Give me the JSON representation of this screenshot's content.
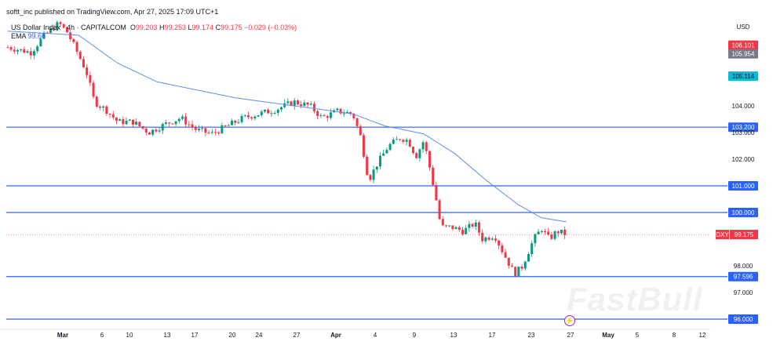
{
  "header": {
    "published": "softt_inc published on TradingView.com, Apr 27, 2025 17:09 UTC+1",
    "symbol": "US Dollar Index · 4h · CAPITALCOM",
    "open_label": "O",
    "open": "99.203",
    "high_label": "H",
    "high": "99.253",
    "low_label": "L",
    "low": "99.174",
    "close_label": "C",
    "close": "99.175",
    "change": "−0.029 (−0.03%)",
    "ema_label": "EMA",
    "ema_value": "99.66"
  },
  "watermark": "FastBull",
  "colors": {
    "up": "#089981",
    "down": "#f23645",
    "ema": "#5b8def",
    "level": "#2962ff",
    "last": "#f23645",
    "high_badge": "#f23645",
    "prev_badge": "#787b86",
    "ema_badge": "#00bcd4"
  },
  "chart_data": {
    "type": "candlestick",
    "currency_label": "USD",
    "symbol_badge": "DXY",
    "last_price": 99.175,
    "ylim": [
      95.4,
      108.0
    ],
    "y_ticks": [
      "104.000",
      "103.000",
      "102.000",
      "98.000",
      "97.000"
    ],
    "y_tick_values": [
      104,
      103,
      102,
      98,
      97
    ],
    "x_ticks": [
      {
        "label": "Mar",
        "date": "2025-03-03"
      },
      {
        "label": "6",
        "date": "2025-03-06"
      },
      {
        "label": "10",
        "date": "2025-03-10"
      },
      {
        "label": "13",
        "date": "2025-03-13"
      },
      {
        "label": "17",
        "date": "2025-03-17"
      },
      {
        "label": "20",
        "date": "2025-03-20"
      },
      {
        "label": "24",
        "date": "2025-03-24"
      },
      {
        "label": "27",
        "date": "2025-03-27"
      },
      {
        "label": "Apr",
        "date": "2025-04-01"
      },
      {
        "label": "4",
        "date": "2025-04-04"
      },
      {
        "label": "9",
        "date": "2025-04-09"
      },
      {
        "label": "13",
        "date": "2025-04-13"
      },
      {
        "label": "17",
        "date": "2025-04-17"
      },
      {
        "label": "23",
        "date": "2025-04-23"
      },
      {
        "label": "27",
        "date": "2025-04-27"
      },
      {
        "label": "May",
        "date": "2025-05-01"
      },
      {
        "label": "5",
        "date": "2025-05-05"
      },
      {
        "label": "8",
        "date": "2025-05-08"
      },
      {
        "label": "12",
        "date": "2025-05-12"
      }
    ],
    "price_path": [
      [
        "2025-02-26T19:00",
        106.2
      ],
      [
        "2025-02-28T14:00",
        106.0
      ],
      [
        "2025-03-01T12:00",
        106.6
      ],
      [
        "2025-03-02T17:00",
        107.1
      ],
      [
        "2025-03-03T07:00",
        106.8
      ],
      [
        "2025-03-03T22:00",
        106.2
      ],
      [
        "2025-03-04T19:00",
        105.3
      ],
      [
        "2025-03-05T10:00",
        104.15
      ],
      [
        "2025-03-06T14:00",
        103.85
      ],
      [
        "2025-03-08T07:00",
        103.4
      ],
      [
        "2025-03-10T07:00",
        103.4
      ],
      [
        "2025-03-11T13:00",
        103.0
      ],
      [
        "2025-03-12T19:00",
        103.3
      ],
      [
        "2025-03-14T23:00",
        103.55
      ],
      [
        "2025-03-17T03:00",
        103.1
      ],
      [
        "2025-03-18T09:00",
        102.95
      ],
      [
        "2025-03-19T15:00",
        103.25
      ],
      [
        "2025-03-21T16:00",
        103.55
      ],
      [
        "2025-03-24T00:00",
        103.7
      ],
      [
        "2025-03-25T06:00",
        103.85
      ],
      [
        "2025-03-26T19:00",
        104.15
      ],
      [
        "2025-03-28T17:00",
        104.0
      ],
      [
        "2025-03-30T05:00",
        103.55
      ],
      [
        "2025-04-01T03:00",
        103.8
      ],
      [
        "2025-04-02T07:00",
        103.7
      ],
      [
        "2025-04-02T22:00",
        102.8
      ],
      [
        "2025-04-03T12:00",
        101.2
      ],
      [
        "2025-04-04T05:00",
        101.8
      ],
      [
        "2025-04-05T17:00",
        102.5
      ],
      [
        "2025-04-07T05:00",
        102.8
      ],
      [
        "2025-04-08T05:00",
        102.7
      ],
      [
        "2025-04-09T04:00",
        102.1
      ],
      [
        "2025-04-09T23:00",
        102.7
      ],
      [
        "2025-04-10T14:00",
        101.65
      ],
      [
        "2025-04-11T04:00",
        100.6
      ],
      [
        "2025-04-11T17:00",
        99.45
      ],
      [
        "2025-04-12T19:00",
        99.45
      ],
      [
        "2025-04-14T00:00",
        99.3
      ],
      [
        "2025-04-15T05:00",
        99.6
      ],
      [
        "2025-04-16T00:00",
        99.0
      ],
      [
        "2025-04-17T09:00",
        99.15
      ],
      [
        "2025-04-19T05:00",
        98.25
      ],
      [
        "2025-04-20T10:00",
        97.7
      ],
      [
        "2025-04-21T13:00",
        97.95
      ],
      [
        "2025-04-23T06:00",
        99.0
      ],
      [
        "2025-04-24T01:00",
        99.4
      ],
      [
        "2025-04-24T20:00",
        99.0
      ],
      [
        "2025-04-25T15:00",
        99.3
      ],
      [
        "2025-04-26T14:00",
        99.175
      ]
    ],
    "ema_path": [
      [
        "2025-02-26T19:00",
        106.8
      ],
      [
        "2025-03-04T05:00",
        106.65
      ],
      [
        "2025-03-08T07:00",
        105.6
      ],
      [
        "2025-03-12T05:00",
        104.9
      ],
      [
        "2025-03-20T11:00",
        104.3
      ],
      [
        "2025-03-29T05:00",
        103.9
      ],
      [
        "2025-04-02T07:00",
        103.7
      ],
      [
        "2025-04-05T05:00",
        103.25
      ],
      [
        "2025-04-09T23:00",
        102.95
      ],
      [
        "2025-04-13T04:00",
        102.2
      ],
      [
        "2025-04-16T10:00",
        101.2
      ],
      [
        "2025-04-20T23:00",
        100.3
      ],
      [
        "2025-04-24T01:00",
        99.8
      ],
      [
        "2025-04-26T14:00",
        99.65
      ]
    ],
    "levels": [
      "103.200",
      "101.000",
      "100.000",
      "97.596",
      "96.000"
    ],
    "level_values": [
      103.2,
      101.0,
      100.0,
      97.596,
      96.0
    ],
    "badges": [
      {
        "label": "106.101",
        "value": 106.101,
        "kind": "high_badge"
      },
      {
        "label": "105.954",
        "value": 105.954,
        "kind": "prev_badge"
      },
      {
        "label": "105.114",
        "value": 105.114,
        "kind": "ema_badge"
      }
    ],
    "last_label": "99.175"
  }
}
